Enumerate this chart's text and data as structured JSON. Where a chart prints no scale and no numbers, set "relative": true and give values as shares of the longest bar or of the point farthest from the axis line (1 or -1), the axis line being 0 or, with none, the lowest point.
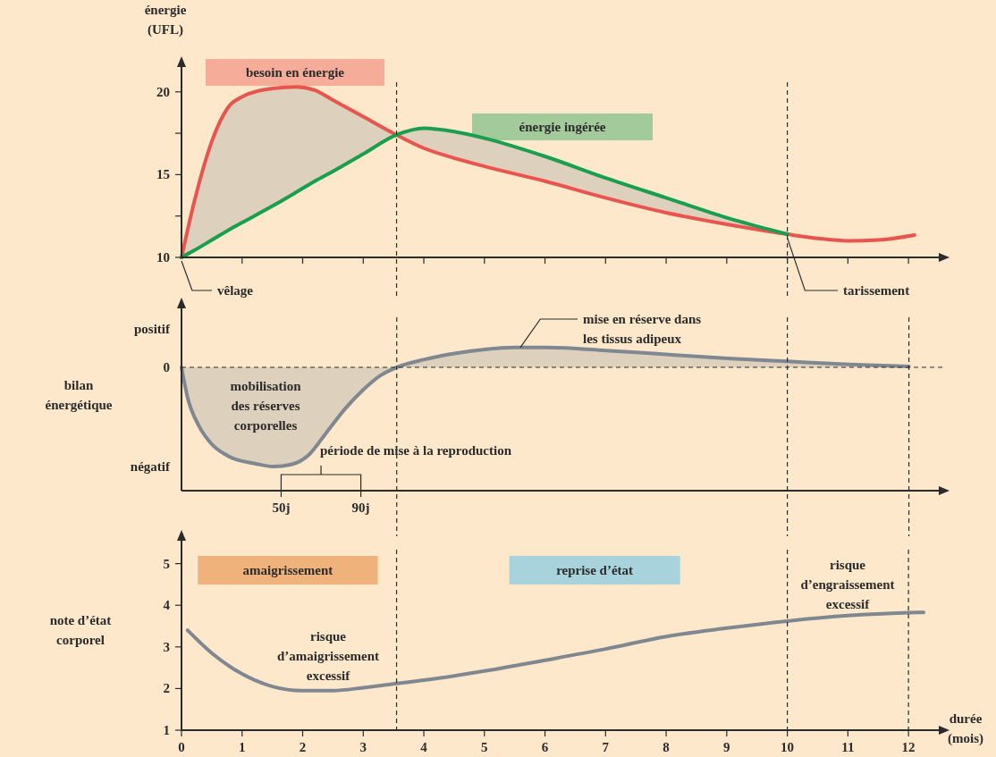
{
  "chart_data": [
    {
      "type": "line",
      "ylabel": "énergie (UFL)",
      "xlim": [
        0,
        12.5
      ],
      "ylim": [
        10,
        21.5
      ],
      "xticks": [
        {
          "value": 1,
          "label": null
        },
        {
          "value": 2,
          "label": null
        },
        {
          "value": 3,
          "label": null
        },
        {
          "value": 4,
          "label": null
        },
        {
          "value": 5,
          "label": null
        },
        {
          "value": 6,
          "label": null
        },
        {
          "value": 7,
          "label": null
        },
        {
          "value": 8,
          "label": null
        },
        {
          "value": 9,
          "label": null
        },
        {
          "value": 10,
          "label": null
        },
        {
          "value": 11,
          "label": null
        },
        {
          "value": 12,
          "label": null
        }
      ],
      "yticks": [
        10,
        {
          "value": 12.5,
          "label": null
        },
        15,
        {
          "value": 17.5,
          "label": null
        },
        20
      ],
      "tick_labels": "y",
      "series": [
        {
          "name": "besoin en énergie",
          "color": "#e8554e",
          "x": [
            0,
            0.2,
            0.5,
            0.8,
            1,
            1.5,
            1.9,
            2.2,
            2.5,
            3,
            3.55,
            4,
            4.5,
            5,
            6,
            7,
            8,
            9,
            10,
            10.5,
            11,
            11.5,
            12.1
          ],
          "values": [
            10,
            13.2,
            17,
            19.2,
            19.7,
            20.2,
            20.3,
            20.1,
            19.5,
            18.5,
            17.4,
            16.6,
            16,
            15.5,
            14.6,
            13.6,
            12.7,
            12,
            11.4,
            11.15,
            11,
            11.05,
            11.35
          ],
          "lower": [
            10,
            10.4,
            11.05,
            11.7,
            12.1,
            13.1,
            13.95,
            14.6,
            15.2,
            16.25,
            17.4,
            17.8,
            17.6,
            17.2,
            16.1,
            14.8,
            13.6,
            12.4,
            11.4,
            null,
            null,
            null,
            null
          ],
          "upper": [
            10,
            13.2,
            17,
            19.2,
            19.7,
            20.2,
            20.3,
            20.1,
            19.5,
            18.5,
            17.4,
            16.6,
            16,
            15.5,
            14.6,
            13.6,
            12.7,
            12,
            11.4,
            null,
            null,
            null,
            null
          ]
        },
        {
          "name": "énergie ingérée",
          "color": "#1a9e50",
          "x": [
            0,
            0.2,
            0.5,
            0.8,
            1,
            1.5,
            1.9,
            2.2,
            2.5,
            3,
            3.55,
            4,
            4.5,
            5,
            6,
            7,
            8,
            9,
            10
          ],
          "values": [
            10,
            10.4,
            11.05,
            11.7,
            12.1,
            13.1,
            13.95,
            14.6,
            15.2,
            16.25,
            17.4,
            17.8,
            17.6,
            17.2,
            16.1,
            14.8,
            13.6,
            12.4,
            11.4
          ]
        }
      ],
      "ref_lines": [
        {
          "axis": "x",
          "value": 3.55,
          "line_style": "dashed"
        },
        {
          "axis": "x",
          "value": 10,
          "line_style": "dashed"
        }
      ],
      "annotations": [
        {
          "text": "vêlage",
          "x": 0,
          "y": 10
        },
        {
          "text": "tarissement",
          "x": 10,
          "y": 11.4
        }
      ]
    },
    {
      "type": "area",
      "relative": true,
      "ylabel": "bilan énergétique",
      "xlim": [
        0,
        380
      ],
      "xticks": [
        {
          "value": 50,
          "label": "50j"
        },
        {
          "value": 90,
          "label": "90j"
        }
      ],
      "tick_labels": "x",
      "series": [
        {
          "color": "#7f8790",
          "x": [
            0,
            3,
            9,
            15,
            24,
            37,
            46,
            55,
            64,
            73,
            82,
            91,
            100,
            108,
            122,
            137,
            152,
            167,
            183,
            213,
            243,
            274,
            304,
            335,
            365
          ],
          "values": [
            0,
            -0.3,
            -0.6,
            -0.77,
            -0.9,
            -0.97,
            -1,
            -0.98,
            -0.88,
            -0.65,
            -0.42,
            -0.23,
            -0.08,
            0,
            0.08,
            0.14,
            0.18,
            0.2,
            0.2,
            0.17,
            0.13,
            0.09,
            0.06,
            0.03,
            0.01
          ]
        }
      ],
      "ref_lines": [
        {
          "axis": "y",
          "value": 0,
          "label": "0",
          "line_style": "dashed"
        },
        {
          "axis": "x",
          "value": 108,
          "line_style": "dashed"
        },
        {
          "axis": "x",
          "value": 304,
          "line_style": "dashed"
        },
        {
          "axis": "x",
          "value": 365,
          "line_style": "dashed"
        }
      ],
      "annotations": [
        "positif",
        "négatif",
        "mobilisation des réserves corporelles",
        {
          "text": "mise en réserve dans les tissus adipeux",
          "x": 170,
          "y": 0.2
        },
        "période de mise à la reproduction"
      ]
    },
    {
      "type": "line",
      "ylabel": "note d’état corporel",
      "xlabel": "durée (mois)",
      "xlim": [
        0,
        12.5
      ],
      "ylim": [
        1,
        5.55
      ],
      "xticks": [
        0,
        1,
        2,
        3,
        4,
        5,
        6,
        7,
        8,
        9,
        10,
        11,
        12
      ],
      "yticks": [
        1,
        2,
        3,
        4,
        5
      ],
      "series": [
        {
          "color": "#7f8790",
          "x": [
            0.1,
            0.5,
            1,
            1.5,
            2,
            2.5,
            3,
            3.55,
            4,
            5,
            6,
            7,
            8,
            9,
            10,
            11,
            12,
            12.25
          ],
          "values": [
            3.4,
            2.85,
            2.35,
            2.05,
            1.95,
            1.95,
            2.02,
            2.12,
            2.2,
            2.42,
            2.68,
            2.95,
            3.25,
            3.45,
            3.62,
            3.75,
            3.82,
            3.83
          ]
        }
      ],
      "ref_lines": [
        {
          "axis": "x",
          "value": 3.55,
          "line_style": "dashed"
        },
        {
          "axis": "x",
          "value": 10,
          "line_style": "dashed"
        },
        {
          "axis": "x",
          "value": 12,
          "line_style": "dashed"
        }
      ],
      "bands": [
        {
          "axis": "x",
          "from": 0.27,
          "to": 3.24,
          "label": "amaigrissement",
          "color": "#efb27a"
        },
        {
          "axis": "x",
          "from": 5.41,
          "to": 8.23,
          "label": "reprise d’état",
          "color": "#a9d3dc"
        }
      ],
      "annotations": [
        "risque d’amaigrissement excessif",
        "risque d’engraissement excessif"
      ]
    }
  ]
}
